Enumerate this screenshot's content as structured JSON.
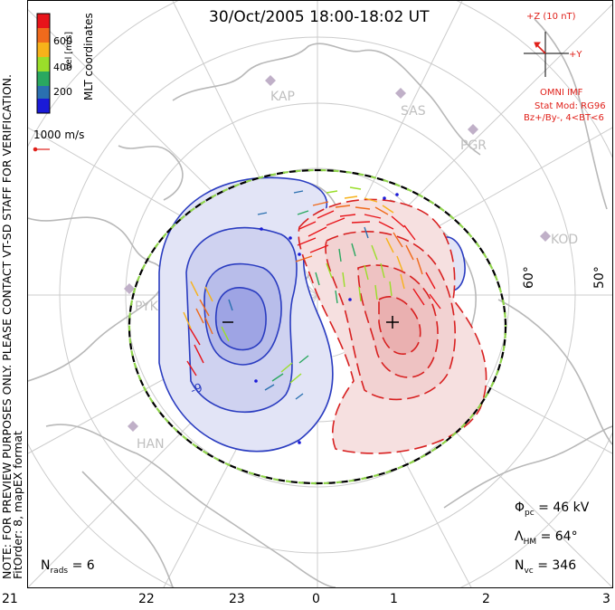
{
  "title": "30/Oct/2005 18:00-18:02 UT",
  "side_note": {
    "line1": "NOTE: FOR PREVIEW PURPOSES ONLY. PLEASE CONTACT VT-SD STAFF FOR VERIFICATION.",
    "line2": "FitOrder: 8, mapEX format"
  },
  "color_scale": {
    "label": "Vel [m/s]",
    "ticks": [
      "600",
      "400",
      "200"
    ],
    "coord_label": "MLT coordinates",
    "colors": [
      "#e8141a",
      "#f06a1c",
      "#f7b21a",
      "#9ade2a",
      "#2aa860",
      "#2a70b0",
      "#1a1ad8"
    ]
  },
  "velocity_reference": "1000 m/s",
  "imf": {
    "z_label": "+Z (10 nT)",
    "y_label": "+Y",
    "source": "OMNI IMF",
    "stat_mod": "Stat Mod: RG96",
    "condition": "Bz+/By-, 4<BT<6"
  },
  "stations": [
    "KAP",
    "SAS",
    "PGR",
    "KOD",
    "PYK",
    "HAN"
  ],
  "latitude_labels": [
    "60°",
    "50°"
  ],
  "mlt_labels": [
    "21",
    "22",
    "23",
    "0",
    "1",
    "2",
    "3"
  ],
  "stats": {
    "phi_pc_label": "Φ",
    "phi_pc_sub": "pc",
    "phi_pc_value": "= 46 kV",
    "lambda_hm_label": "Λ",
    "lambda_hm_sub": "HM",
    "lambda_hm_value": "= 64°",
    "n_vc_label": "N",
    "n_vc_sub": "vc",
    "n_vc_value": "= 346",
    "n_rads_label": "N",
    "n_rads_sub": "rads",
    "n_rads_value": "= 6"
  },
  "potential_markers": {
    "min": "−",
    "max": "+",
    "contour_label": "-9"
  },
  "colors": {
    "negative_cell": "#2a3cc0",
    "positive_cell": "#d82020",
    "boundary_green": "#8fd44a",
    "imf_red": "#e0201a",
    "coastline": "#b8b8b8",
    "grid": "#c8c8c8"
  }
}
